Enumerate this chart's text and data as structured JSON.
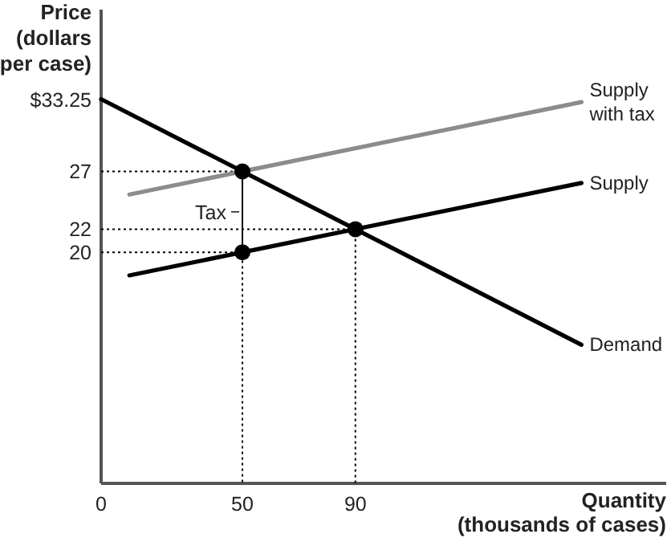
{
  "chart_data": {
    "type": "line",
    "xlabel": "Quantity (thousands of cases)",
    "ylabel": "Price (dollars per case)",
    "xlim": [
      0,
      200
    ],
    "ylim": [
      0,
      41
    ],
    "xticks": [
      0,
      50,
      90
    ],
    "yticks": [
      20,
      22,
      27,
      {
        "value": 33.25,
        "label": "$33.25"
      }
    ],
    "annotations": [
      {
        "text": "Tax",
        "x": 50,
        "y": 23.5
      }
    ],
    "series": [
      {
        "color": "#000000",
        "line_style": "dotted",
        "marker": "none",
        "x": [
          0,
          50,
          50
        ],
        "values": [
          27,
          27,
          0
        ]
      },
      {
        "color": "#000000",
        "line_style": "dotted",
        "marker": "none",
        "x": [
          0,
          90,
          90
        ],
        "values": [
          22,
          22,
          0
        ]
      },
      {
        "color": "#000000",
        "line_style": "dotted",
        "marker": "none",
        "x": [
          0,
          50
        ],
        "values": [
          20,
          20
        ]
      },
      {
        "color": "#000000",
        "line_style": "solid",
        "marker": "none",
        "x": [
          50,
          50
        ],
        "values": [
          20,
          27
        ]
      },
      {
        "name": "Supply with tax",
        "color": "#8c8c8c",
        "line_style": "solid",
        "marker": "none",
        "x": [
          10,
          170
        ],
        "values": [
          25,
          33
        ]
      },
      {
        "name": "Supply",
        "color": "#000000",
        "line_style": "solid",
        "marker": "none",
        "x": [
          10,
          170
        ],
        "values": [
          18,
          26
        ]
      },
      {
        "name": "Demand",
        "color": "#000000",
        "line_style": "solid",
        "marker": "none",
        "x": [
          0,
          170
        ],
        "values": [
          33.25,
          12
        ]
      },
      {
        "type": "scatter",
        "color": "#000000",
        "marker": "circle",
        "x": [
          50,
          90,
          50
        ],
        "values": [
          27,
          22,
          20
        ]
      }
    ]
  }
}
